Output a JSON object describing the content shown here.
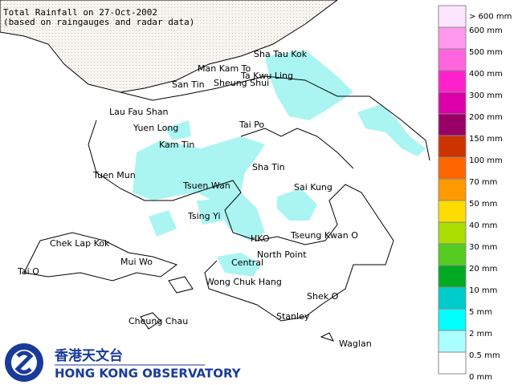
{
  "title": [
    "Total Rainfall on 27-Oct-2002",
    "(based on raingauges and radar data)"
  ],
  "places": [
    "Sha Tau Kok",
    "Man Kam To",
    "Ta Kwu Ling",
    "San Tin",
    "Sheung Shui",
    "Lau Fau Shan",
    "Yuen Long",
    "Tai Po",
    "Kam Tin",
    "Sha Tin",
    "Tuen Mun",
    "Tsuen Wan",
    "Sai Kung",
    "Tsing Yi",
    "Chek Lap Kok",
    "HKO",
    "Tseung Kwan O",
    "Mui Wo",
    "North Point",
    "Central",
    "Tai O",
    "Wong Chuk Hang",
    "Shek O",
    "Cheung Chau",
    "Stanley",
    "Waglan"
  ],
  "legend": {
    "colors": [
      "#ffe6ff",
      "#ff99ee",
      "#ff66dd",
      "#ff22cc",
      "#dd00aa",
      "#990066",
      "#cc3300",
      "#ff6600",
      "#ff9900",
      "#ffdd00",
      "#aadd00",
      "#55cc22",
      "#00aa22",
      "#00cccc",
      "#00ffff",
      "#aaffff",
      "#ffffff"
    ],
    "labels": [
      "> 600 mm",
      "600 mm",
      "500 mm",
      "400 mm",
      "300 mm",
      "200 mm",
      "150 mm",
      "100 mm",
      "70 mm",
      "50 mm",
      "40 mm",
      "30 mm",
      "20 mm",
      "10 mm",
      "5 mm",
      "2 mm",
      "0.5 mm",
      "0 mm"
    ]
  },
  "logo": {
    "chinese": "香港天文台",
    "english": "HONG KONG OBSERVATORY"
  }
}
